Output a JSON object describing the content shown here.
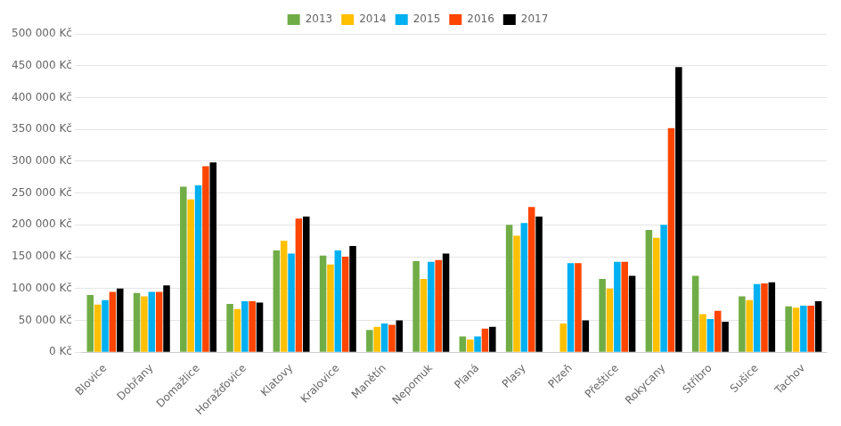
{
  "chart_data": {
    "type": "bar",
    "categories": [
      "Blovice",
      "Dobřany",
      "Domažlice",
      "Horažďovice",
      "Klatovy",
      "Kralovice",
      "Manětín",
      "Nepomuk",
      "Planá",
      "Plasy",
      "Plzeň",
      "Přeštice",
      "Rokycany",
      "Stříbro",
      "Sušice",
      "Tachov"
    ],
    "series": [
      {
        "name": "2013",
        "color": "#70AD47",
        "values": [
          90000,
          93000,
          260000,
          76000,
          160000,
          152000,
          35000,
          143000,
          25000,
          200000,
          0,
          115000,
          192000,
          120000,
          88000,
          72000
        ]
      },
      {
        "name": "2014",
        "color": "#FFC000",
        "values": [
          75000,
          88000,
          240000,
          68000,
          175000,
          138000,
          40000,
          115000,
          20000,
          183000,
          45000,
          100000,
          180000,
          60000,
          82000,
          70000
        ]
      },
      {
        "name": "2015",
        "color": "#00B0F0",
        "values": [
          82000,
          95000,
          262000,
          80000,
          155000,
          160000,
          45000,
          142000,
          25000,
          203000,
          140000,
          142000,
          200000,
          52000,
          107000,
          73000
        ]
      },
      {
        "name": "2016",
        "color": "#FF4500",
        "values": [
          95000,
          95000,
          292000,
          80000,
          210000,
          150000,
          43000,
          145000,
          37000,
          228000,
          140000,
          142000,
          352000,
          65000,
          108000,
          73000
        ]
      },
      {
        "name": "2017",
        "color": "#000000",
        "values": [
          100000,
          105000,
          298000,
          78000,
          213000,
          167000,
          50000,
          155000,
          40000,
          213000,
          50000,
          120000,
          448000,
          48000,
          110000,
          80000
        ]
      }
    ],
    "ylim": [
      0,
      500000
    ],
    "yticks": [
      {
        "value": 0,
        "label": "0 Kč"
      },
      {
        "value": 50000,
        "label": "50 000 Kč"
      },
      {
        "value": 100000,
        "label": "100 000 Kč"
      },
      {
        "value": 150000,
        "label": "150 000 Kč"
      },
      {
        "value": 200000,
        "label": "200 000 Kč"
      },
      {
        "value": 250000,
        "label": "250 000 Kč"
      },
      {
        "value": 300000,
        "label": "300 000 Kč"
      },
      {
        "value": 350000,
        "label": "350 000 Kč"
      },
      {
        "value": 400000,
        "label": "400 000 Kč"
      },
      {
        "value": 450000,
        "label": "450 000 Kč"
      },
      {
        "value": 500000,
        "label": "500 000 Kč"
      }
    ],
    "grid": true,
    "legend": "top"
  }
}
